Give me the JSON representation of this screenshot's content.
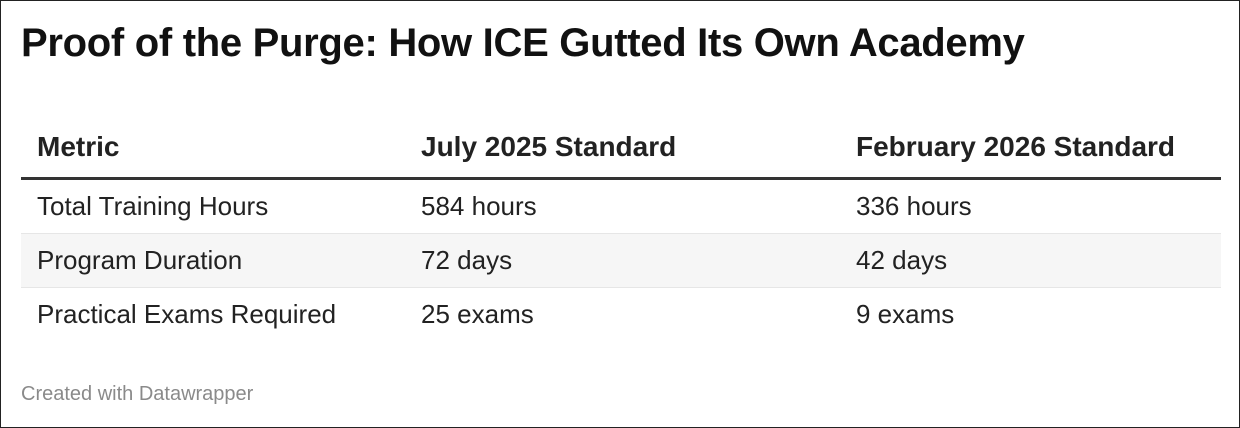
{
  "title": "Proof of the Purge: How ICE Gutted Its Own Academy",
  "table": {
    "header": [
      "Metric",
      "July 2025 Standard",
      "February 2026 Standard"
    ],
    "rows": [
      [
        "Total Training Hours",
        "584 hours",
        "336 hours"
      ],
      [
        "Program Duration",
        "72 days",
        "42 days"
      ],
      [
        "Practical Exams Required",
        "25 exams",
        "9 exams"
      ]
    ]
  },
  "footer": "Created with Datawrapper"
}
